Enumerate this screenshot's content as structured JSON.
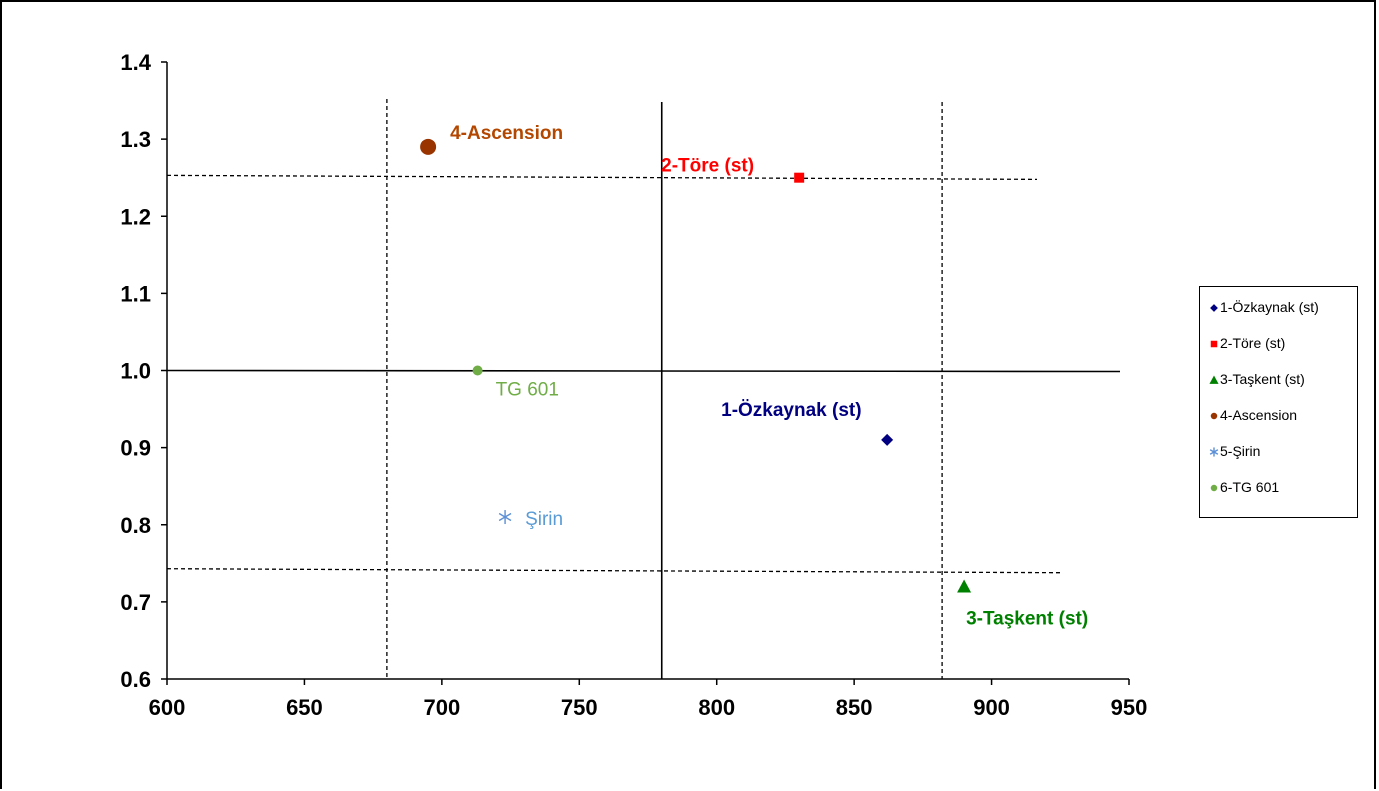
{
  "chart_data": {
    "type": "scatter",
    "xlim": [
      600,
      950
    ],
    "ylim": [
      0.6,
      1.4
    ],
    "x_ticks": [
      "600",
      "650",
      "700",
      "750",
      "800",
      "850",
      "900",
      "950"
    ],
    "y_ticks": [
      "0.6",
      "0.7",
      "0.8",
      "0.9",
      "1.0",
      "1.1",
      "1.2",
      "1.3",
      "1.4"
    ],
    "grid": false,
    "legend_position": "right",
    "series": [
      {
        "name": "1-Özkaynak (st)",
        "label": "1-Özkaynak (st)",
        "x": 862,
        "y": 0.91,
        "marker": "diamond",
        "color": "#000080",
        "label_color": "#000080",
        "bold": true
      },
      {
        "name": "2-Töre (st)",
        "label": "2-Töre (st)",
        "x": 830,
        "y": 1.25,
        "marker": "square",
        "color": "#ff0000",
        "label_color": "#ff0000",
        "bold": true
      },
      {
        "name": "3-Taşkent (st)",
        "label": "3-Taşkent (st)",
        "x": 890,
        "y": 0.72,
        "marker": "triangle",
        "color": "#008000",
        "label_color": "#008000",
        "bold": true
      },
      {
        "name": "4-Ascension",
        "label": "4-Ascension",
        "x": 695,
        "y": 1.29,
        "marker": "circle-large",
        "color": "#993300",
        "label_color": "#b34700",
        "bold": true
      },
      {
        "name": "5-Şirin",
        "label": "Şirin",
        "x": 723,
        "y": 0.81,
        "marker": "asterisk",
        "color": "#5b8fd6",
        "label_color": "#5b9bd5",
        "bold": false
      },
      {
        "name": "6-TG 601",
        "label": "TG 601",
        "x": 713,
        "y": 1.0,
        "marker": "circle",
        "color": "#70ad47",
        "label_color": "#70ad47",
        "bold": false
      }
    ],
    "reference_lines": {
      "solid": {
        "x": 780,
        "y": 1.0
      },
      "dashed": {
        "x": [
          680,
          882
        ],
        "y": [
          0.743,
          1.253
        ]
      }
    }
  }
}
